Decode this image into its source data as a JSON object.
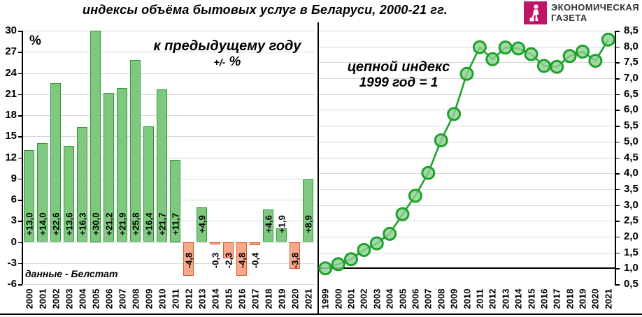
{
  "header": {
    "title": "индексы объёма бытовых услуг в Беларуси, 2000-21 гг.",
    "logo": {
      "line1": "ЭКОНОМИЧЕСКАЯ",
      "line2": "ГАЗЕТА",
      "brand_color": "#c01467",
      "icon": "walking-person-icon"
    }
  },
  "source_note": "данные - Белстат",
  "chart_data": [
    {
      "type": "bar",
      "title": "к предыдущему году",
      "subtitle_prefix": "+/-",
      "subtitle_unit": "%",
      "axis_unit_label": "%",
      "categories": [
        "2000",
        "2001",
        "2002",
        "2003",
        "2004",
        "2005",
        "2006",
        "2007",
        "2008",
        "2009",
        "2010",
        "2011",
        "2012",
        "2013",
        "2014",
        "2015",
        "2016",
        "2017",
        "2018",
        "2019",
        "2020",
        "2021"
      ],
      "values": [
        13.0,
        14.0,
        22.6,
        13.6,
        16.3,
        30.0,
        21.2,
        21.9,
        25.8,
        16.4,
        21.7,
        11.7,
        -4.8,
        4.9,
        -0.3,
        -2.3,
        -4.8,
        -0.4,
        4.6,
        1.9,
        -3.8,
        8.9
      ],
      "bar_labels": [
        "+13,0",
        "+14,0",
        "+22,6",
        "+13,6",
        "+16,3",
        "+30,0",
        "+21,2",
        "+21,9",
        "+25,8",
        "+16,4",
        "+21,7",
        "+11,7",
        "-4,8",
        "+4,9",
        "-0,3",
        "-2,3",
        "-4,8",
        "-0,4",
        "+4,6",
        "+1,9",
        "-3,8",
        "+8,9"
      ],
      "ylim": [
        -6,
        30
      ],
      "ytick_step": 3,
      "grid": true,
      "legend_position": "none",
      "positive_fill": "#7ec87f",
      "positive_border": "#2e9b35",
      "negative_fill": "#f8a88b",
      "negative_border": "#e2592b"
    },
    {
      "type": "line",
      "title": "цепной индекс",
      "subtitle": "1999 год = 1",
      "categories": [
        "1999",
        "2000",
        "2001",
        "2002",
        "2003",
        "2004",
        "2005",
        "2006",
        "2007",
        "2008",
        "2009",
        "2010",
        "2011",
        "2012",
        "2013",
        "2014",
        "2015",
        "2016",
        "2017",
        "2018",
        "2019",
        "2020",
        "2021"
      ],
      "values": [
        1.0,
        1.13,
        1.29,
        1.58,
        1.79,
        2.09,
        2.71,
        3.29,
        4.01,
        5.04,
        5.87,
        7.14,
        7.98,
        7.6,
        7.97,
        7.94,
        7.76,
        7.39,
        7.36,
        7.7,
        7.84,
        7.55,
        8.22
      ],
      "ylim": [
        0.5,
        8.5
      ],
      "ytick_step": 0.5,
      "baseline_value": 1.0,
      "grid": true,
      "legend_position": "none",
      "line_color": "#1ea22c",
      "marker_fill": "#8fd092",
      "marker_border": "#1ea22c"
    }
  ]
}
